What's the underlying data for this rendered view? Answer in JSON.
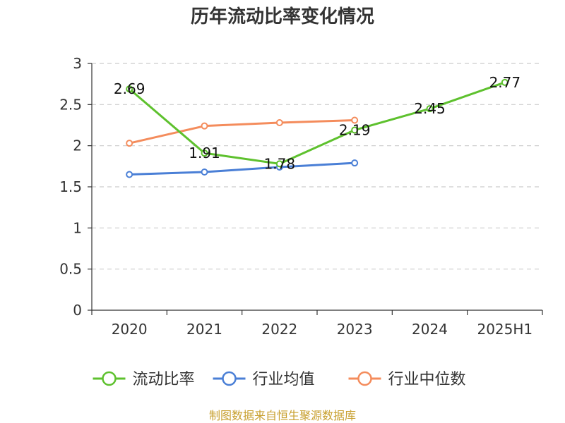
{
  "title": "历年流动比率变化情况",
  "footer": "制图数据来自恒生聚源数据库",
  "chart_data": {
    "type": "line",
    "title": "历年流动比率变化情况",
    "categories": [
      "2020",
      "2021",
      "2022",
      "2023",
      "2024",
      "2025H1"
    ],
    "ylim": [
      0,
      3
    ],
    "yticks": [
      "0",
      "0.5",
      "1",
      "1.5",
      "2",
      "2.5",
      "3"
    ],
    "grid": true,
    "legend_position": "bottom",
    "series": [
      {
        "name": "流动比率",
        "color": "#5ec12e",
        "values": [
          2.69,
          1.91,
          1.78,
          2.19,
          2.45,
          2.77
        ],
        "labels": [
          "2.69",
          "1.91",
          "1.78",
          "2.19",
          "2.45",
          "2.77"
        ]
      },
      {
        "name": "行业均值",
        "color": "#4a7fd6",
        "values": [
          1.65,
          1.68,
          1.74,
          1.79,
          null,
          null
        ]
      },
      {
        "name": "行业中位数",
        "color": "#f48c5c",
        "values": [
          2.03,
          2.24,
          2.28,
          2.31,
          null,
          null
        ]
      }
    ]
  }
}
